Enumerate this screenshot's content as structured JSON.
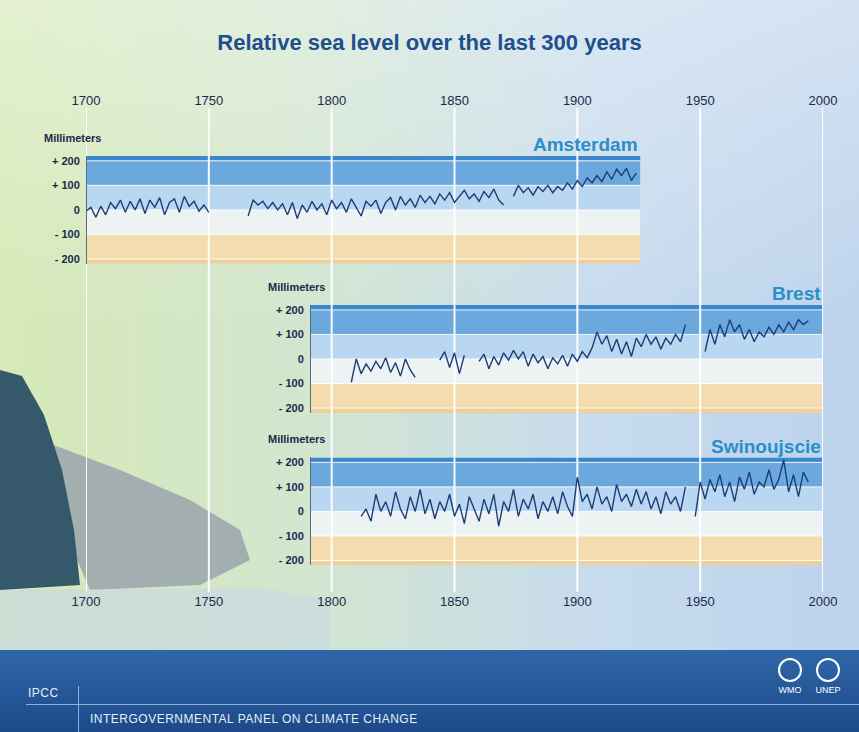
{
  "title": "Relative sea level over the last 300 years",
  "footer": {
    "left": "IPCC",
    "text": "INTERGOVERNMENTAL PANEL ON CLIMATE CHANGE",
    "logos": [
      "WMO",
      "UNEP"
    ]
  },
  "chart_data": [
    {
      "type": "line",
      "title": "Amsterdam",
      "ylabel": "Millimeters",
      "color": "#1e3d78",
      "x": [
        1700,
        1702,
        1704,
        1706,
        1708,
        1710,
        1712,
        1714,
        1716,
        1718,
        1720,
        1722,
        1724,
        1726,
        1728,
        1730,
        1732,
        1734,
        1736,
        1738,
        1740,
        1742,
        1744,
        1746,
        1748,
        1750,
        1758,
        1766,
        1768,
        1770,
        1772,
        1774,
        1776,
        1778,
        1780,
        1782,
        1784,
        1786,
        1788,
        1790,
        1792,
        1794,
        1796,
        1798,
        1800,
        1802,
        1804,
        1806,
        1808,
        1810,
        1812,
        1814,
        1816,
        1818,
        1820,
        1822,
        1824,
        1826,
        1828,
        1830,
        1832,
        1834,
        1836,
        1838,
        1840,
        1842,
        1844,
        1846,
        1848,
        1850,
        1852,
        1854,
        1856,
        1858,
        1860,
        1862,
        1864,
        1866,
        1868,
        1870,
        1872,
        1874,
        1876,
        1878,
        1880,
        1882,
        1884,
        1886,
        1888,
        1890,
        1892,
        1894,
        1896,
        1898,
        1900,
        1902,
        1904,
        1906,
        1908,
        1910,
        1912,
        1914,
        1916,
        1918,
        1920,
        1922,
        1924
      ],
      "values": [
        -5,
        10,
        -30,
        15,
        -20,
        30,
        5,
        40,
        -10,
        35,
        0,
        45,
        -15,
        40,
        10,
        50,
        -20,
        30,
        45,
        -10,
        55,
        15,
        35,
        -5,
        20,
        -10,
        null,
        -25,
        40,
        20,
        35,
        5,
        30,
        0,
        25,
        -20,
        30,
        -35,
        20,
        -10,
        35,
        0,
        25,
        -20,
        40,
        5,
        30,
        -10,
        45,
        10,
        -25,
        35,
        15,
        40,
        -15,
        30,
        50,
        0,
        55,
        20,
        45,
        10,
        60,
        30,
        55,
        25,
        65,
        40,
        70,
        30,
        55,
        80,
        45,
        65,
        35,
        75,
        50,
        85,
        40,
        20,
        null,
        55,
        100,
        70,
        90,
        60,
        95,
        75,
        100,
        70,
        95,
        80,
        110,
        85,
        120,
        95,
        130,
        110,
        140,
        115,
        155,
        125,
        165,
        140,
        170,
        120,
        150
      ],
      "xlim": [
        1700,
        2000
      ],
      "xticks": [
        1700,
        1750,
        1800,
        1850,
        1900,
        1950,
        2000
      ],
      "ylim": [
        -220,
        220
      ],
      "yticks": [
        {
          "value": -200,
          "label": "- 200"
        },
        {
          "value": -100,
          "label": "- 100"
        },
        0,
        {
          "value": 100,
          "label": "+ 100"
        },
        {
          "value": 200,
          "label": "+ 200"
        }
      ],
      "grid": true
    },
    {
      "type": "line",
      "title": "Brest",
      "ylabel": "Millimeters",
      "color": "#1e3d78",
      "tick_labels": "y",
      "x": [
        1808,
        1810,
        1812,
        1814,
        1816,
        1818,
        1820,
        1822,
        1824,
        1826,
        1828,
        1830,
        1832,
        1834,
        1838,
        1844,
        1846,
        1848,
        1850,
        1852,
        1854,
        1857,
        1860,
        1862,
        1864,
        1866,
        1868,
        1870,
        1872,
        1874,
        1876,
        1878,
        1880,
        1882,
        1884,
        1886,
        1888,
        1890,
        1892,
        1894,
        1896,
        1898,
        1900,
        1902,
        1904,
        1906,
        1908,
        1910,
        1912,
        1914,
        1916,
        1918,
        1920,
        1922,
        1924,
        1926,
        1928,
        1930,
        1932,
        1934,
        1936,
        1938,
        1940,
        1942,
        1944,
        1948,
        1952,
        1954,
        1956,
        1958,
        1960,
        1962,
        1964,
        1966,
        1968,
        1970,
        1972,
        1974,
        1976,
        1978,
        1980,
        1982,
        1984,
        1986,
        1988,
        1990,
        1992,
        1994
      ],
      "values": [
        -95,
        0,
        -60,
        -20,
        -50,
        -10,
        -40,
        5,
        -55,
        -15,
        -70,
        0,
        -45,
        -75,
        null,
        -5,
        30,
        -35,
        25,
        -60,
        15,
        null,
        -10,
        20,
        -40,
        10,
        -25,
        25,
        -5,
        35,
        0,
        30,
        -30,
        20,
        -15,
        10,
        -40,
        5,
        -20,
        15,
        -30,
        20,
        -10,
        30,
        5,
        45,
        110,
        60,
        95,
        30,
        80,
        20,
        70,
        10,
        85,
        50,
        100,
        60,
        90,
        40,
        85,
        60,
        100,
        70,
        140,
        null,
        30,
        120,
        60,
        140,
        90,
        160,
        110,
        140,
        80,
        120,
        70,
        110,
        90,
        130,
        100,
        140,
        110,
        150,
        120,
        160,
        140,
        155
      ],
      "xlim": [
        1700,
        2000
      ],
      "xticks": [
        1700,
        1750,
        1800,
        1850,
        1900,
        1950,
        2000
      ],
      "ylim": [
        -220,
        220
      ],
      "yticks": [
        {
          "value": -200,
          "label": "- 200"
        },
        {
          "value": -100,
          "label": "- 100"
        },
        0,
        {
          "value": 100,
          "label": "+ 100"
        },
        {
          "value": 200,
          "label": "+ 200"
        }
      ],
      "grid": true
    },
    {
      "type": "line",
      "title": "Swinoujscie",
      "ylabel": "Millimeters",
      "color": "#1e3d78",
      "x": [
        1812,
        1814,
        1816,
        1818,
        1820,
        1822,
        1824,
        1826,
        1828,
        1830,
        1832,
        1834,
        1836,
        1838,
        1840,
        1842,
        1844,
        1846,
        1848,
        1850,
        1852,
        1854,
        1856,
        1858,
        1860,
        1862,
        1864,
        1866,
        1868,
        1870,
        1872,
        1874,
        1876,
        1878,
        1880,
        1882,
        1884,
        1886,
        1888,
        1890,
        1892,
        1894,
        1896,
        1898,
        1900,
        1902,
        1904,
        1906,
        1908,
        1910,
        1912,
        1914,
        1916,
        1918,
        1920,
        1922,
        1924,
        1926,
        1928,
        1930,
        1932,
        1934,
        1936,
        1938,
        1940,
        1942,
        1944,
        1946,
        1948,
        1950,
        1952,
        1954,
        1956,
        1958,
        1960,
        1962,
        1964,
        1966,
        1968,
        1970,
        1972,
        1974,
        1976,
        1978,
        1980,
        1982,
        1984,
        1986,
        1988,
        1990,
        1992,
        1994
      ],
      "values": [
        -20,
        10,
        -40,
        70,
        0,
        40,
        -20,
        80,
        10,
        -30,
        60,
        0,
        90,
        -10,
        50,
        -30,
        40,
        0,
        70,
        -20,
        30,
        -50,
        60,
        10,
        -40,
        50,
        -10,
        70,
        -60,
        40,
        0,
        90,
        -20,
        50,
        10,
        70,
        -30,
        40,
        0,
        60,
        -10,
        80,
        20,
        -20,
        140,
        40,
        70,
        10,
        100,
        30,
        60,
        0,
        110,
        40,
        70,
        20,
        90,
        30,
        80,
        10,
        60,
        -10,
        80,
        30,
        60,
        0,
        100,
        null,
        -20,
        120,
        50,
        130,
        80,
        150,
        60,
        120,
        40,
        140,
        90,
        160,
        70,
        120,
        100,
        170,
        90,
        130,
        210,
        80,
        150,
        60,
        160,
        120
      ],
      "xlim": [
        1700,
        2000
      ],
      "xticks": [
        1700,
        1750,
        1800,
        1850,
        1900,
        1950,
        2000
      ],
      "ylim": [
        -220,
        220
      ],
      "yticks": [
        {
          "value": -200,
          "label": "- 200"
        },
        {
          "value": -100,
          "label": "- 100"
        },
        0,
        {
          "value": 100,
          "label": "+ 100"
        },
        {
          "value": 200,
          "label": "+ 200"
        }
      ],
      "grid": true
    }
  ]
}
